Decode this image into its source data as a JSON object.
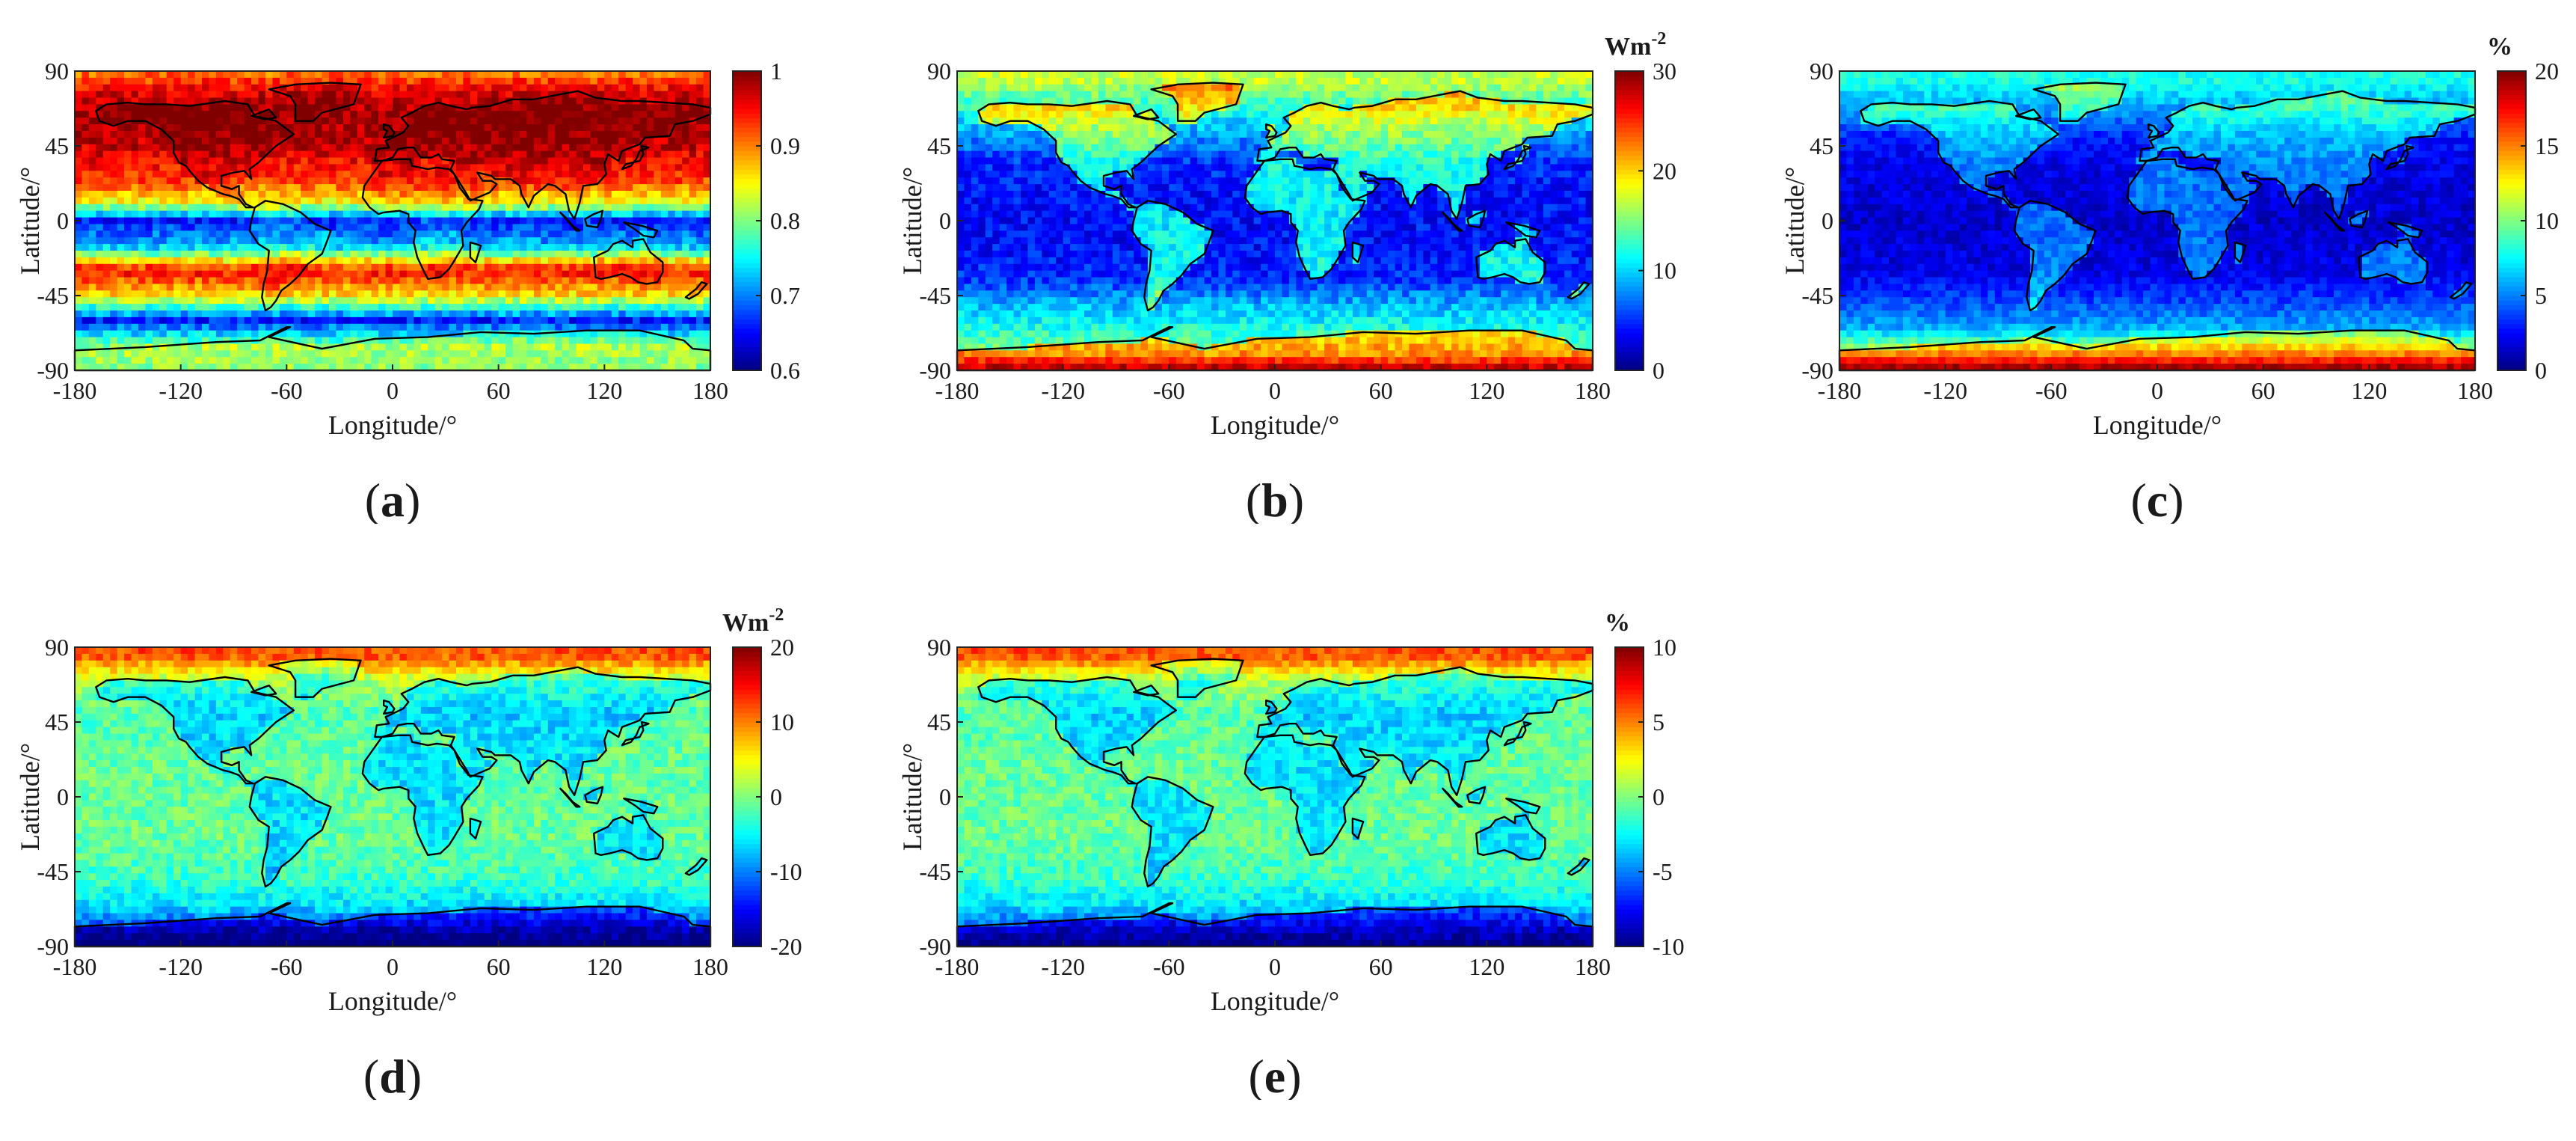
{
  "chart_data": [
    {
      "id": "a",
      "type": "heatmap",
      "panel_label": "a",
      "title": "",
      "xlabel": "Longitude/°",
      "ylabel": "Latitude/°",
      "xlim": [
        -180,
        180
      ],
      "ylim": [
        -90,
        90
      ],
      "x_ticks": [
        -180,
        -120,
        -60,
        0,
        60,
        120,
        180
      ],
      "y_ticks": [
        -90,
        -45,
        0,
        45,
        90
      ],
      "colorbar": {
        "unit": "",
        "range": [
          0.6,
          1
        ],
        "ticks": [
          "0.6",
          "0.7",
          "0.8",
          "0.9",
          "1"
        ],
        "colormap": "jet"
      },
      "field_profile": {
        "by_latitude": [
          [
            -90,
            0.78
          ],
          [
            -75,
            0.8
          ],
          [
            -60,
            0.66
          ],
          [
            -45,
            0.86
          ],
          [
            -30,
            0.95
          ],
          [
            -15,
            0.72
          ],
          [
            0,
            0.66
          ],
          [
            10,
            0.84
          ],
          [
            25,
            0.93
          ],
          [
            45,
            0.97
          ],
          [
            60,
            0.99
          ],
          [
            75,
            0.97
          ],
          [
            90,
            0.9
          ]
        ],
        "land_offset": 0.02,
        "noise": 0.03
      }
    },
    {
      "id": "b",
      "type": "heatmap",
      "panel_label": "b",
      "title": "",
      "xlabel": "Longitude/°",
      "ylabel": "Latitude/°",
      "xlim": [
        -180,
        180
      ],
      "ylim": [
        -90,
        90
      ],
      "x_ticks": [
        -180,
        -120,
        -60,
        0,
        60,
        120,
        180
      ],
      "y_ticks": [
        -90,
        -45,
        0,
        45,
        90
      ],
      "colorbar": {
        "unit": "Wm",
        "unit_exp": "-2",
        "range": [
          0,
          30
        ],
        "ticks": [
          "0",
          "10",
          "20",
          "30"
        ],
        "colormap": "jet"
      },
      "field_profile": {
        "by_latitude": [
          [
            -90,
            22
          ],
          [
            -80,
            15
          ],
          [
            -65,
            12
          ],
          [
            -50,
            9
          ],
          [
            -35,
            5
          ],
          [
            -15,
            4
          ],
          [
            0,
            4
          ],
          [
            15,
            4
          ],
          [
            35,
            5
          ],
          [
            55,
            9
          ],
          [
            70,
            13
          ],
          [
            85,
            17
          ],
          [
            90,
            17
          ]
        ],
        "land_offset": 7,
        "noise": 2
      }
    },
    {
      "id": "c",
      "type": "heatmap",
      "panel_label": "c",
      "title": "",
      "xlabel": "Longitude/°",
      "ylabel": "Latitude/°",
      "xlim": [
        -180,
        180
      ],
      "ylim": [
        -90,
        90
      ],
      "x_ticks": [
        -180,
        -120,
        -60,
        0,
        60,
        120,
        180
      ],
      "y_ticks": [
        -90,
        -45,
        0,
        45,
        90
      ],
      "colorbar": {
        "unit": "%",
        "range": [
          0,
          20
        ],
        "ticks": [
          "0",
          "5",
          "10",
          "15",
          "20"
        ],
        "colormap": "jet"
      },
      "field_profile": {
        "by_latitude": [
          [
            -90,
            17
          ],
          [
            -80,
            12
          ],
          [
            -65,
            6
          ],
          [
            -50,
            4
          ],
          [
            -30,
            2
          ],
          [
            0,
            1.5
          ],
          [
            30,
            2
          ],
          [
            50,
            3
          ],
          [
            70,
            6
          ],
          [
            85,
            8
          ],
          [
            90,
            8
          ]
        ],
        "land_offset": 3,
        "noise": 1
      }
    },
    {
      "id": "d",
      "type": "heatmap",
      "panel_label": "d",
      "title": "",
      "xlabel": "Longitude/°",
      "ylabel": "Latitude/°",
      "xlim": [
        -180,
        180
      ],
      "ylim": [
        -90,
        90
      ],
      "x_ticks": [
        -180,
        -120,
        -60,
        0,
        60,
        120,
        180
      ],
      "y_ticks": [
        -90,
        -45,
        0,
        45,
        90
      ],
      "colorbar": {
        "unit": "Wm",
        "unit_exp": "-2",
        "range": [
          -20,
          20
        ],
        "ticks": [
          "-20",
          "-10",
          "0",
          "10",
          "20"
        ],
        "colormap": "jet"
      },
      "field_profile": {
        "by_latitude": [
          [
            -90,
            -17
          ],
          [
            -80,
            -13
          ],
          [
            -65,
            -6
          ],
          [
            -50,
            -3
          ],
          [
            -30,
            -1
          ],
          [
            0,
            -1
          ],
          [
            30,
            -1
          ],
          [
            50,
            -2
          ],
          [
            70,
            2
          ],
          [
            85,
            12
          ],
          [
            90,
            12
          ]
        ],
        "land_offset": -5,
        "noise": 2.5
      }
    },
    {
      "id": "e",
      "type": "heatmap",
      "panel_label": "e",
      "title": "",
      "xlabel": "Longitude/°",
      "ylabel": "Latitude/°",
      "xlim": [
        -180,
        180
      ],
      "ylim": [
        -90,
        90
      ],
      "x_ticks": [
        -180,
        -120,
        -60,
        0,
        60,
        120,
        180
      ],
      "y_ticks": [
        -90,
        -45,
        0,
        45,
        90
      ],
      "colorbar": {
        "unit": "%",
        "range": [
          -10,
          10
        ],
        "ticks": [
          "-10",
          "-5",
          "0",
          "5",
          "10"
        ],
        "colormap": "jet"
      },
      "field_profile": {
        "by_latitude": [
          [
            -90,
            -8
          ],
          [
            -80,
            -6
          ],
          [
            -65,
            -3
          ],
          [
            -50,
            -1.5
          ],
          [
            -30,
            -0.5
          ],
          [
            0,
            -0.5
          ],
          [
            30,
            -0.5
          ],
          [
            50,
            -1
          ],
          [
            70,
            1
          ],
          [
            85,
            6
          ],
          [
            90,
            6
          ]
        ],
        "land_offset": -2.5,
        "noise": 1.2
      }
    }
  ]
}
